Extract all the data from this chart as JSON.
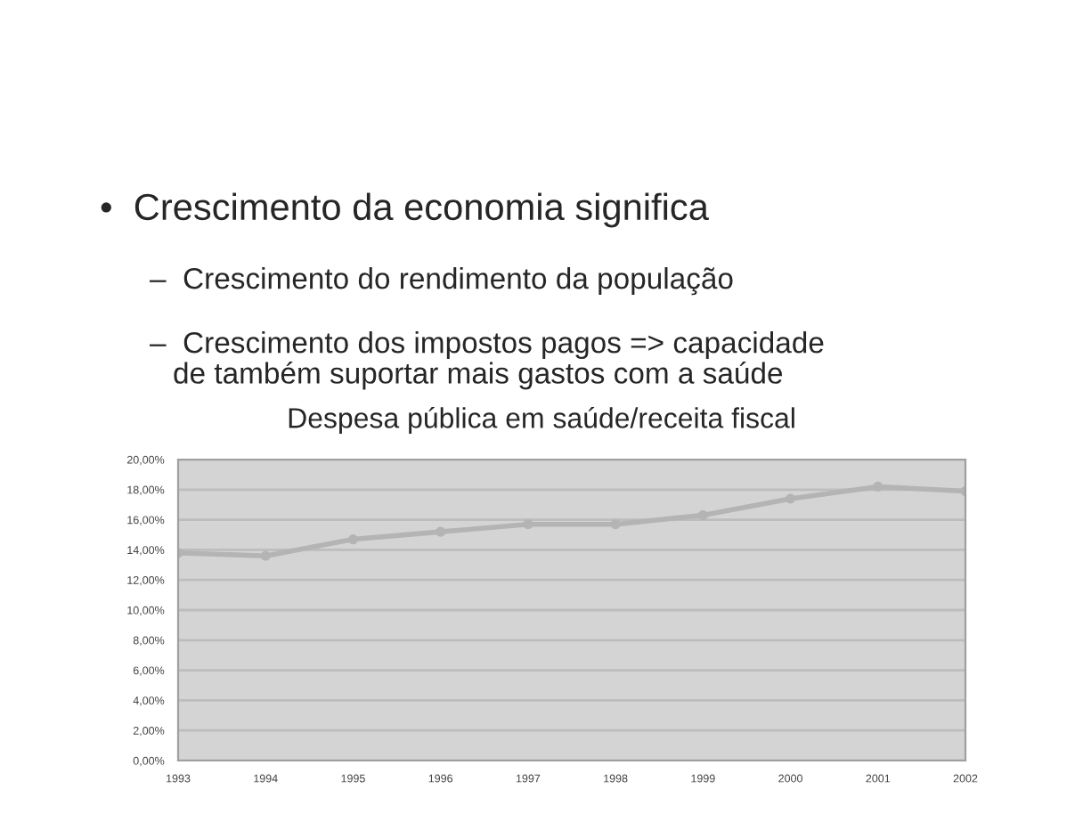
{
  "chart_data": {
    "type": "line",
    "title": "Despesa pública em saúde/receita fiscal",
    "annotations": [
      "•  Crescimento da economia significa",
      "–  Crescimento do rendimento da população",
      "–  Crescimento dos impostos pagos => capacidade\nde também suportar mais gastos com a saúde"
    ],
    "categories": [
      "1993",
      "1994",
      "1995",
      "1996",
      "1997",
      "1998",
      "1999",
      "2000",
      "2001",
      "2002"
    ],
    "series": [
      {
        "color": "#b4b4b4",
        "values": [
          13.8,
          13.6,
          14.7,
          15.2,
          15.7,
          15.7,
          16.3,
          17.4,
          18.2,
          17.9
        ]
      }
    ],
    "ylim": [
      0,
      20
    ],
    "yticks": [
      {
        "value": 0,
        "label": "0,00%"
      },
      {
        "value": 2,
        "label": "2,00%"
      },
      {
        "value": 4,
        "label": "4,00%"
      },
      {
        "value": 6,
        "label": "6,00%"
      },
      {
        "value": 8,
        "label": "8,00%"
      },
      {
        "value": 10,
        "label": "10,00%"
      },
      {
        "value": 12,
        "label": "12,00%"
      },
      {
        "value": 14,
        "label": "14,00%"
      },
      {
        "value": 16,
        "label": "16,00%"
      },
      {
        "value": 18,
        "label": "18,00%"
      },
      {
        "value": 20,
        "label": "20,00%"
      }
    ],
    "grid": "y",
    "marker": "circle",
    "legend": false
  }
}
